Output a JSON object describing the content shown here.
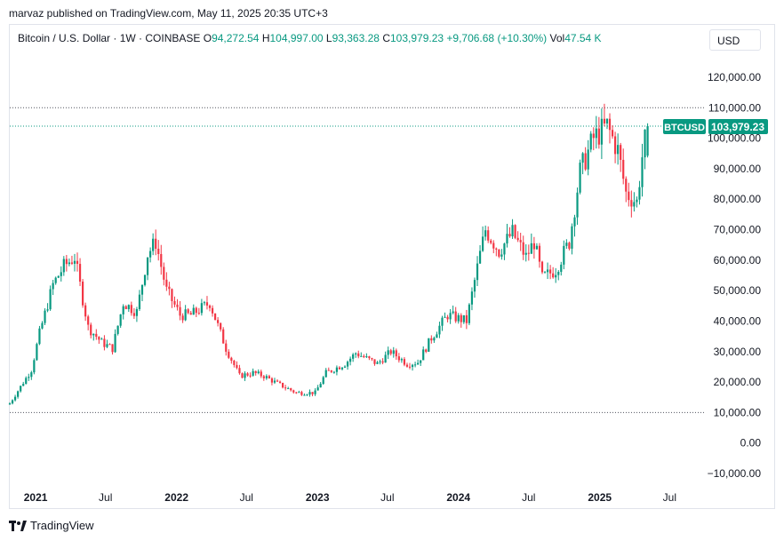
{
  "header": {
    "publisher_text": "marvaz published on TradingView.com, May 11, 2025 20:35 UTC+3"
  },
  "legend": {
    "symbol": "Bitcoin / U.S. Dollar · 1W · COINBASE",
    "o_label": "O",
    "o_value": "94,272.54",
    "h_label": "H",
    "h_value": "104,997.00",
    "l_label": "L",
    "l_value": "93,363.28",
    "c_label": "C",
    "c_value": "103,979.23",
    "change": "+9,706.68 (+10.30%)",
    "vol_label": "Vol",
    "vol_value": "47.54 K"
  },
  "currency_button": "USD",
  "price_tag": {
    "symbol": "BTCUSD",
    "value": "103,979.23"
  },
  "footer": {
    "brand": "TradingView"
  },
  "colors": {
    "up": "#089981",
    "down": "#f23645",
    "tag": "#089981"
  },
  "chart_data": {
    "type": "candlestick",
    "title": "Bitcoin / U.S. Dollar · 1W · COINBASE",
    "y_ticks": [
      120000,
      110000,
      100000,
      90000,
      80000,
      70000,
      60000,
      50000,
      40000,
      30000,
      20000,
      10000,
      0,
      -10000
    ],
    "y_tick_labels": [
      "120,000.00",
      "110,000.00",
      "100,000.00",
      "90,000.00",
      "80,000.00",
      "70,000.00",
      "60,000.00",
      "50,000.00",
      "40,000.00",
      "30,000.00",
      "20,000.00",
      "10,000.00",
      "0.00",
      "−10,000.00"
    ],
    "ylim": [
      -12000,
      128000
    ],
    "x_ticks": [
      {
        "label": "2021",
        "date": "2021-01-01",
        "bold": true
      },
      {
        "label": "Jul",
        "date": "2021-07-01",
        "bold": false
      },
      {
        "label": "2022",
        "date": "2022-01-01",
        "bold": true
      },
      {
        "label": "Jul",
        "date": "2022-07-01",
        "bold": false
      },
      {
        "label": "2023",
        "date": "2023-01-01",
        "bold": true
      },
      {
        "label": "Jul",
        "date": "2023-07-01",
        "bold": false
      },
      {
        "label": "2024",
        "date": "2024-01-01",
        "bold": true
      },
      {
        "label": "Jul",
        "date": "2024-07-01",
        "bold": false
      },
      {
        "label": "2025",
        "date": "2025-01-01",
        "bold": true
      },
      {
        "label": "Jul",
        "date": "2025-07-01",
        "bold": false
      }
    ],
    "xlim": [
      "2020-10-26",
      "2025-09-28"
    ],
    "reference_lines": [
      110000,
      103979.23,
      10000
    ],
    "anchors": [
      [
        "2020-10-26",
        13000
      ],
      [
        "2020-11-23",
        18500
      ],
      [
        "2020-12-21",
        24000
      ],
      [
        "2021-01-11",
        36000
      ],
      [
        "2021-02-15",
        52000
      ],
      [
        "2021-03-15",
        58000
      ],
      [
        "2021-04-12",
        61000
      ],
      [
        "2021-05-17",
        38000
      ],
      [
        "2021-06-21",
        33000
      ],
      [
        "2021-07-19",
        31000
      ],
      [
        "2021-08-16",
        46000
      ],
      [
        "2021-09-20",
        43000
      ],
      [
        "2021-10-18",
        62000
      ],
      [
        "2021-11-08",
        66000
      ],
      [
        "2021-12-06",
        50000
      ],
      [
        "2022-01-10",
        42000
      ],
      [
        "2022-02-07",
        42000
      ],
      [
        "2022-03-28",
        46000
      ],
      [
        "2022-05-09",
        31000
      ],
      [
        "2022-06-13",
        22000
      ],
      [
        "2022-07-18",
        23000
      ],
      [
        "2022-08-15",
        22000
      ],
      [
        "2022-09-19",
        19500
      ],
      [
        "2022-11-07",
        16500
      ],
      [
        "2022-12-26",
        16500
      ],
      [
        "2023-01-23",
        23000
      ],
      [
        "2023-03-13",
        26000
      ],
      [
        "2023-04-10",
        29500
      ],
      [
        "2023-06-05",
        26000
      ],
      [
        "2023-07-10",
        30000
      ],
      [
        "2023-08-21",
        26000
      ],
      [
        "2023-09-18",
        26500
      ],
      [
        "2023-10-23",
        34500
      ],
      [
        "2023-12-04",
        42000
      ],
      [
        "2024-01-22",
        40000
      ],
      [
        "2024-02-26",
        62000
      ],
      [
        "2024-03-11",
        70000
      ],
      [
        "2024-04-15",
        63000
      ],
      [
        "2024-05-20",
        69000
      ],
      [
        "2024-06-24",
        61000
      ],
      [
        "2024-07-15",
        66000
      ],
      [
        "2024-08-05",
        54000
      ],
      [
        "2024-09-09",
        57000
      ],
      [
        "2024-10-14",
        66000
      ],
      [
        "2024-11-11",
        89000
      ],
      [
        "2024-12-16",
        100000
      ],
      [
        "2025-01-20",
        104000
      ],
      [
        "2025-02-17",
        96000
      ],
      [
        "2025-03-10",
        82000
      ],
      [
        "2025-04-07",
        79000
      ],
      [
        "2025-04-21",
        94000
      ],
      [
        "2025-05-05",
        103979
      ]
    ]
  }
}
